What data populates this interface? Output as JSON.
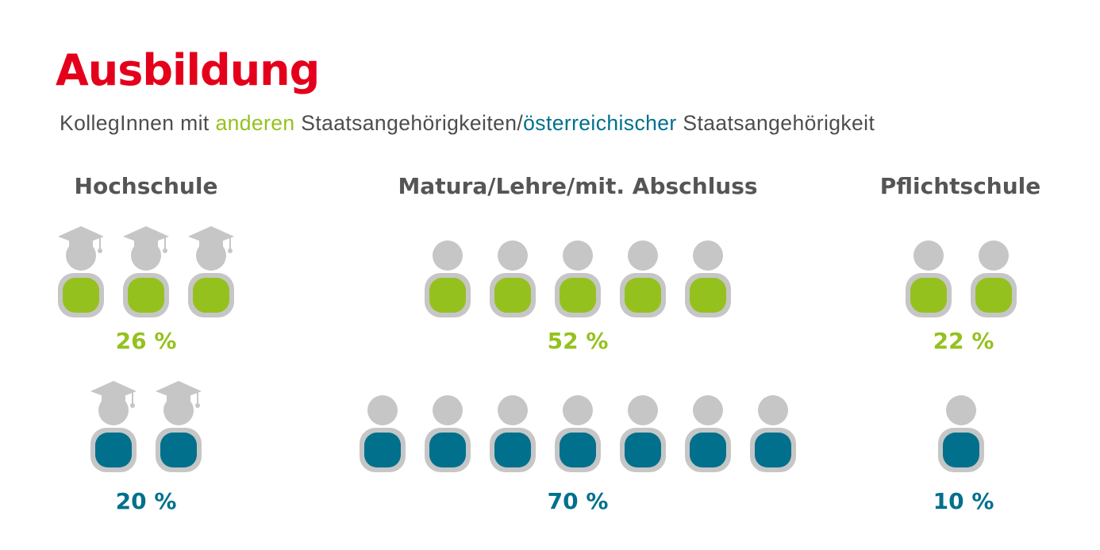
{
  "title": "Ausbildung",
  "subtitle": {
    "prefix": "KollegInnen mit ",
    "foreign": "anderen",
    "middle": " Staatsangehörigkeiten/",
    "austrian": "österreichischer",
    "suffix": " Staatsangehörigkeit"
  },
  "colors": {
    "title": "#e4001b",
    "foreign": "#95c11f",
    "austrian": "#00708c",
    "figure": "#c6c6c6"
  },
  "chart_data": {
    "type": "pictogram",
    "categories": [
      "Hochschule",
      "Matura/Lehre/mit. Abschluss",
      "Pflichtschule"
    ],
    "series": [
      {
        "key": "foreign",
        "values": [
          26,
          52,
          22
        ],
        "labels": [
          "26 %",
          "52 %",
          "22 %"
        ],
        "icon_counts": [
          3,
          5,
          2
        ]
      },
      {
        "key": "austrian",
        "values": [
          20,
          70,
          10
        ],
        "labels": [
          "20 %",
          "70 %",
          "10 %"
        ],
        "icon_counts": [
          2,
          7,
          1
        ]
      }
    ],
    "icons": [
      "graduate-icon",
      "person-icon",
      "person-icon"
    ]
  }
}
